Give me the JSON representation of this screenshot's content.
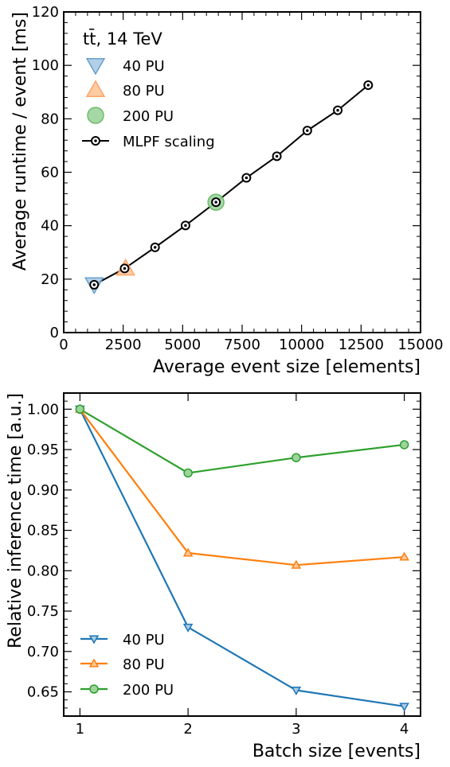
{
  "chart_data": [
    {
      "type": "line",
      "title": "",
      "annotation": "tt̄, 14 TeV",
      "xlabel": "Average event size [elements]",
      "ylabel": "Average runtime / event [ms]",
      "xlim": [
        0,
        15000
      ],
      "ylim": [
        0,
        120
      ],
      "xticks": [
        "0",
        "2500",
        "5000",
        "7500",
        "10000",
        "12500",
        "15000"
      ],
      "yticks": [
        "0",
        "20",
        "40",
        "60",
        "80",
        "100",
        "120"
      ],
      "legend_position": "top-left",
      "grid": false,
      "series": [
        {
          "name": "40 PU",
          "marker": "triangle-down",
          "color": "#7bafd4",
          "points": [
            {
              "x": 1280,
              "y": 18
            }
          ]
        },
        {
          "name": "80 PU",
          "marker": "triangle-up",
          "color": "#ffb27a",
          "points": [
            {
              "x": 2600,
              "y": 24
            }
          ]
        },
        {
          "name": "200 PU",
          "marker": "circle",
          "color": "#86c986",
          "points": [
            {
              "x": 6400,
              "y": 48.8
            }
          ]
        },
        {
          "name": "MLPF scaling",
          "marker": "circle-dot",
          "color": "#000000",
          "line": true,
          "points": [
            {
              "x": 1280,
              "y": 17.9
            },
            {
              "x": 2560,
              "y": 24.0
            },
            {
              "x": 3840,
              "y": 31.9
            },
            {
              "x": 5120,
              "y": 40.1
            },
            {
              "x": 6400,
              "y": 48.8
            },
            {
              "x": 7680,
              "y": 57.9
            },
            {
              "x": 8960,
              "y": 66.0
            },
            {
              "x": 10240,
              "y": 75.6
            },
            {
              "x": 11520,
              "y": 83.2
            },
            {
              "x": 12800,
              "y": 92.6
            }
          ]
        }
      ]
    },
    {
      "type": "line",
      "title": "",
      "xlabel": "Batch size [events]",
      "ylabel": "Relative inference time [a.u.]",
      "xlim": [
        0.85,
        4.15
      ],
      "ylim": [
        0.62,
        1.02
      ],
      "xticks": [
        "1",
        "2",
        "3",
        "4"
      ],
      "yticks": [
        "0.65",
        "0.70",
        "0.75",
        "0.80",
        "0.85",
        "0.90",
        "0.95",
        "1.00"
      ],
      "legend_position": "bottom-left",
      "grid": false,
      "x": [
        1,
        2,
        3,
        4
      ],
      "series": [
        {
          "name": "40 PU",
          "marker": "triangle-down",
          "color": "#1f77b4",
          "values": [
            1.0,
            0.73,
            0.652,
            0.632
          ]
        },
        {
          "name": "80 PU",
          "marker": "triangle-up",
          "color": "#ff7f0e",
          "values": [
            1.0,
            0.822,
            0.807,
            0.817
          ]
        },
        {
          "name": "200 PU",
          "marker": "circle",
          "color": "#2ca02c",
          "values": [
            1.0,
            0.921,
            0.94,
            0.956
          ]
        }
      ]
    }
  ]
}
